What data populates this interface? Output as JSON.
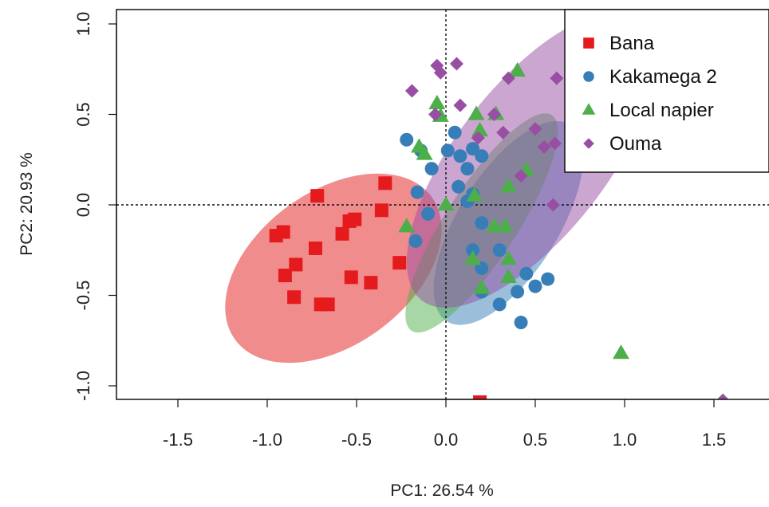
{
  "chart_data": {
    "type": "scatter",
    "xlabel": "PC1: 26.54 %",
    "ylabel": "PC2: 20.93 %",
    "xlim": [
      -1.83,
      1.83
    ],
    "ylim": [
      -1.08,
      1.08
    ],
    "xticks": [
      "-1.5",
      "-1.0",
      "-0.5",
      "0.0",
      "0.5",
      "1.0",
      "1.5"
    ],
    "yticks": [
      "-1.0",
      "-0.5",
      "0.0",
      "0.5",
      "1.0"
    ],
    "reference_lines": {
      "x": 0.0,
      "y": 0.0,
      "style": "dotted"
    },
    "legend_position": "top-right",
    "series": [
      {
        "name": "Bana",
        "marker": "square",
        "color": "#E41A1C",
        "ellipse": {
          "center": [
            -0.63,
            -0.35
          ],
          "semi_axes": [
            0.68,
            0.43
          ],
          "angle_deg": -36
        },
        "points": [
          [
            -0.72,
            0.05
          ],
          [
            -0.95,
            -0.17
          ],
          [
            -0.91,
            -0.15
          ],
          [
            -0.73,
            -0.24
          ],
          [
            -0.58,
            -0.16
          ],
          [
            -0.54,
            -0.09
          ],
          [
            -0.51,
            -0.08
          ],
          [
            -0.36,
            -0.03
          ],
          [
            -0.34,
            0.12
          ],
          [
            -0.26,
            -0.32
          ],
          [
            -0.84,
            -0.33
          ],
          [
            -0.9,
            -0.39
          ],
          [
            -0.53,
            -0.4
          ],
          [
            -0.42,
            -0.43
          ],
          [
            -0.85,
            -0.51
          ],
          [
            -0.7,
            -0.55
          ],
          [
            -0.66,
            -0.55
          ],
          [
            0.19,
            -1.09
          ]
        ]
      },
      {
        "name": "Kakamega 2",
        "marker": "circle",
        "color": "#377EB8",
        "ellipse": {
          "center": [
            0.35,
            -0.1
          ],
          "semi_axes": [
            0.65,
            0.28
          ],
          "angle_deg": -58
        },
        "points": [
          [
            -0.22,
            0.36
          ],
          [
            -0.14,
            0.3
          ],
          [
            -0.08,
            0.2
          ],
          [
            0.05,
            0.4
          ],
          [
            0.15,
            0.31
          ],
          [
            0.2,
            0.27
          ],
          [
            0.08,
            0.27
          ],
          [
            0.12,
            0.2
          ],
          [
            0.07,
            0.1
          ],
          [
            0.15,
            0.06
          ],
          [
            -0.16,
            0.07
          ],
          [
            -0.1,
            -0.05
          ],
          [
            0.12,
            0.02
          ],
          [
            0.2,
            -0.1
          ],
          [
            0.3,
            -0.25
          ],
          [
            0.15,
            -0.25
          ],
          [
            0.2,
            -0.35
          ],
          [
            0.45,
            -0.38
          ],
          [
            0.5,
            -0.45
          ],
          [
            0.57,
            -0.41
          ],
          [
            0.4,
            -0.48
          ],
          [
            0.2,
            -0.48
          ],
          [
            0.3,
            -0.55
          ],
          [
            0.42,
            -0.65
          ],
          [
            -0.17,
            -0.2
          ],
          [
            0.01,
            0.3
          ]
        ]
      },
      {
        "name": "Local napier",
        "marker": "triangle",
        "color": "#4DAF4A",
        "ellipse": {
          "center": [
            0.2,
            -0.1
          ],
          "semi_axes": [
            0.72,
            0.2
          ],
          "angle_deg": -57
        },
        "points": [
          [
            0.4,
            0.74
          ],
          [
            -0.05,
            0.56
          ],
          [
            -0.03,
            0.49
          ],
          [
            0.17,
            0.5
          ],
          [
            0.19,
            0.41
          ],
          [
            -0.15,
            0.32
          ],
          [
            -0.12,
            0.28
          ],
          [
            0.45,
            0.19
          ],
          [
            0.35,
            0.1
          ],
          [
            0.16,
            0.05
          ],
          [
            0.0,
            0.0
          ],
          [
            -0.22,
            -0.12
          ],
          [
            0.27,
            -0.12
          ],
          [
            0.33,
            -0.12
          ],
          [
            0.15,
            -0.3
          ],
          [
            0.35,
            -0.3
          ],
          [
            0.35,
            -0.4
          ],
          [
            0.2,
            -0.46
          ],
          [
            0.98,
            -0.82
          ],
          [
            0.28,
            0.5
          ]
        ]
      },
      {
        "name": "Ouma",
        "marker": "diamond",
        "color": "#984EA3",
        "ellipse": {
          "center": [
            0.48,
            0.25
          ],
          "semi_axes": [
            1.0,
            0.42
          ],
          "angle_deg": -52
        },
        "points": [
          [
            -0.05,
            0.77
          ],
          [
            0.06,
            0.78
          ],
          [
            -0.03,
            0.73
          ],
          [
            0.35,
            0.7
          ],
          [
            0.62,
            0.7
          ],
          [
            -0.19,
            0.63
          ],
          [
            0.08,
            0.55
          ],
          [
            0.27,
            0.5
          ],
          [
            -0.06,
            0.5
          ],
          [
            0.32,
            0.4
          ],
          [
            0.5,
            0.42
          ],
          [
            0.18,
            0.37
          ],
          [
            0.55,
            0.32
          ],
          [
            0.61,
            0.34
          ],
          [
            0.42,
            0.16
          ],
          [
            0.6,
            0.0
          ],
          [
            1.55,
            -1.08
          ]
        ]
      }
    ]
  }
}
